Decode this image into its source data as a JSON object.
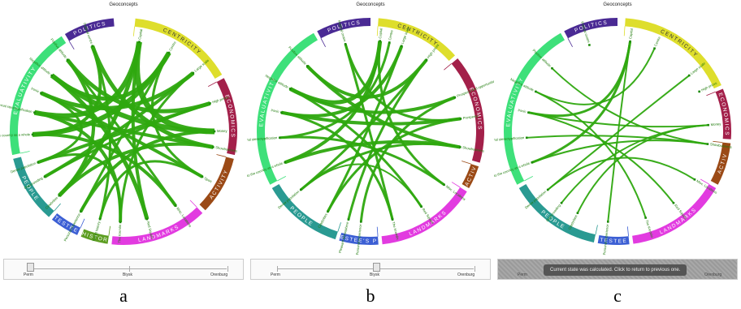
{
  "panels": [
    {
      "title": "Geoconcepts",
      "caption": "a",
      "slider": {
        "labels": [
          "Perm",
          "Biysk",
          "Orenburg"
        ],
        "value_index": 0,
        "overlay": false,
        "message": ""
      },
      "groups": [
        {
          "name": "CENTRICITY",
          "color": "#dede2c",
          "start": -84,
          "end": -30
        },
        {
          "name": "ECONOMICS",
          "color": "#a3204a",
          "start": -28,
          "end": 12
        },
        {
          "name": "ACTIVITY",
          "color": "#9b4a16",
          "start": 14,
          "end": 44
        },
        {
          "name": "LANDMARKS",
          "color": "#e23be0",
          "start": 46,
          "end": 96
        },
        {
          "name": "HISTOR",
          "color": "#5d9e22",
          "start": 98,
          "end": 112
        },
        {
          "name": "TESTEE",
          "color": "#3c5fd4",
          "start": 114,
          "end": 129
        },
        {
          "name": "PEOPLE",
          "color": "#2a9a92",
          "start": 131,
          "end": 166
        },
        {
          "name": "EVALUATIVITY",
          "color": "#3ee07a",
          "start": 168,
          "end": 237
        },
        {
          "name": "POLITICS",
          "color": "#4a2a94",
          "start": 239,
          "end": 265
        }
      ],
      "nodes": [
        {
          "label": "Capital",
          "angle": -80
        },
        {
          "label": "Centre",
          "angle": -60
        },
        {
          "label": "Large scale",
          "angle": -40
        },
        {
          "label": "High prices",
          "angle": -18
        },
        {
          "label": "Money",
          "angle": 0
        },
        {
          "label": "Showbusiness",
          "angle": 10
        },
        {
          "label": "Sport",
          "angle": 30
        },
        {
          "label": "Misc. Locations",
          "angle": 55
        },
        {
          "label": "Red Square",
          "angle": 75
        },
        {
          "label": "The Kremlin",
          "angle": 92
        },
        {
          "label": "Tsarist history",
          "angle": 105
        },
        {
          "label": "Personal experience",
          "angle": 118
        },
        {
          "label": "Celebrities",
          "angle": 135
        },
        {
          "label": "Overcrowding",
          "angle": 150
        },
        {
          "label": "Dense population",
          "angle": 160
        },
        {
          "label": "Counterposition to the country as a whole",
          "angle": 178
        },
        {
          "label": "External stereotypification",
          "angle": 192
        },
        {
          "label": "Ironic",
          "angle": 205
        },
        {
          "label": "Negative attitude",
          "angle": 218
        },
        {
          "label": "Positive attitude",
          "angle": 232
        },
        {
          "label": "Political centre",
          "angle": 250
        }
      ],
      "links": [
        {
          "a": 0,
          "b": 4,
          "w": 7
        },
        {
          "a": 0,
          "b": 16,
          "w": 6
        },
        {
          "a": 0,
          "b": 12,
          "w": 5
        },
        {
          "a": 1,
          "b": 18,
          "w": 5
        },
        {
          "a": 1,
          "b": 15,
          "w": 6
        },
        {
          "a": 2,
          "b": 17,
          "w": 5
        },
        {
          "a": 2,
          "b": 13,
          "w": 4
        },
        {
          "a": 3,
          "b": 19,
          "w": 5
        },
        {
          "a": 3,
          "b": 14,
          "w": 4
        },
        {
          "a": 4,
          "b": 18,
          "w": 6
        },
        {
          "a": 4,
          "b": 11,
          "w": 4
        },
        {
          "a": 5,
          "b": 16,
          "w": 4
        },
        {
          "a": 5,
          "b": 20,
          "w": 5
        },
        {
          "a": 6,
          "b": 17,
          "w": 4
        },
        {
          "a": 6,
          "b": 1,
          "w": 3
        },
        {
          "a": 7,
          "b": 15,
          "w": 4
        },
        {
          "a": 7,
          "b": 19,
          "w": 3
        },
        {
          "a": 8,
          "b": 18,
          "w": 5
        },
        {
          "a": 8,
          "b": 0,
          "w": 4
        },
        {
          "a": 9,
          "b": 16,
          "w": 4
        },
        {
          "a": 9,
          "b": 2,
          "w": 3
        },
        {
          "a": 10,
          "b": 20,
          "w": 3
        },
        {
          "a": 11,
          "b": 1,
          "w": 3
        },
        {
          "a": 12,
          "b": 5,
          "w": 4
        },
        {
          "a": 13,
          "b": 3,
          "w": 3
        },
        {
          "a": 14,
          "b": 17,
          "w": 3
        },
        {
          "a": 15,
          "b": 20,
          "w": 4
        },
        {
          "a": 19,
          "b": 12,
          "w": 4
        },
        {
          "a": 10,
          "b": 6,
          "w": 3
        },
        {
          "a": 9,
          "b": 14,
          "w": 3
        }
      ]
    },
    {
      "title": "Geoconcepts",
      "caption": "b",
      "slider": {
        "labels": [
          "Perm",
          "Biysk",
          "Orenburg"
        ],
        "value_index": 1,
        "overlay": false,
        "message": ""
      },
      "groups": [
        {
          "name": "CENTRICITY",
          "color": "#dede2c",
          "start": -86,
          "end": -42
        },
        {
          "name": "ECONOMICS",
          "color": "#a3204a",
          "start": -40,
          "end": 16
        },
        {
          "name": "ACTIV",
          "color": "#9b4a16",
          "start": 18,
          "end": 30
        },
        {
          "name": "LANDMARKS",
          "color": "#e23be0",
          "start": 32,
          "end": 84
        },
        {
          "name": "TESTEE'S PE",
          "color": "#3c5fd4",
          "start": 86,
          "end": 106
        },
        {
          "name": "PEOPLE",
          "color": "#2a9a92",
          "start": 108,
          "end": 150
        },
        {
          "name": "EVALUATIVITY",
          "color": "#3ee07a",
          "start": 152,
          "end": 240
        },
        {
          "name": "POLITICS",
          "color": "#4a2a94",
          "start": 242,
          "end": 270
        }
      ],
      "nodes": [
        {
          "label": "Capital",
          "angle": -84
        },
        {
          "label": "Large scale",
          "angle": -70
        },
        {
          "label": "High prices",
          "angle": -52
        },
        {
          "label": "Prospects and opportunities",
          "angle": -22
        },
        {
          "label": "Prosperity",
          "angle": -8
        },
        {
          "label": "Showbusiness",
          "angle": 10
        },
        {
          "label": "Misc. Locations",
          "angle": 36
        },
        {
          "label": "Red Square",
          "angle": 56
        },
        {
          "label": "The Kremlin",
          "angle": 76
        },
        {
          "label": "Personal experience",
          "angle": 96
        },
        {
          "label": "Pleasant atmosphere",
          "angle": 104
        },
        {
          "label": "Celebrities",
          "angle": 118
        },
        {
          "label": "Dense population",
          "angle": 140
        },
        {
          "label": "Counterposition to the country as a whole",
          "angle": 160
        },
        {
          "label": "External stereotypification",
          "angle": 176
        },
        {
          "label": "Ironic",
          "angle": 192
        },
        {
          "label": "Negative attitude",
          "angle": 208
        },
        {
          "label": "Positive attitude",
          "angle": 226
        },
        {
          "label": "Political centre",
          "angle": 254
        },
        {
          "label": "Centre",
          "angle": -78
        }
      ],
      "links": [
        {
          "a": 0,
          "b": 16,
          "w": 5
        },
        {
          "a": 0,
          "b": 13,
          "w": 4
        },
        {
          "a": 1,
          "b": 15,
          "w": 4
        },
        {
          "a": 1,
          "b": 11,
          "w": 3
        },
        {
          "a": 2,
          "b": 17,
          "w": 4
        },
        {
          "a": 2,
          "b": 12,
          "w": 3
        },
        {
          "a": 3,
          "b": 16,
          "w": 4
        },
        {
          "a": 3,
          "b": 9,
          "w": 3
        },
        {
          "a": 4,
          "b": 15,
          "w": 4
        },
        {
          "a": 4,
          "b": 18,
          "w": 3
        },
        {
          "a": 5,
          "b": 13,
          "w": 4
        },
        {
          "a": 5,
          "b": 17,
          "w": 4
        },
        {
          "a": 6,
          "b": 14,
          "w": 3
        },
        {
          "a": 6,
          "b": 0,
          "w": 3
        },
        {
          "a": 7,
          "b": 16,
          "w": 3
        },
        {
          "a": 8,
          "b": 18,
          "w": 3
        },
        {
          "a": 8,
          "b": 15,
          "w": 3
        },
        {
          "a": 10,
          "b": 2,
          "w": 3
        },
        {
          "a": 11,
          "b": 4,
          "w": 3
        },
        {
          "a": 12,
          "b": 5,
          "w": 3
        },
        {
          "a": 19,
          "b": 14,
          "w": 3
        },
        {
          "a": 7,
          "b": 12,
          "w": 2
        }
      ]
    },
    {
      "title": "Geoconcepts",
      "caption": "c",
      "slider": {
        "labels": [
          "Perm",
          "Biysk",
          "Orenburg"
        ],
        "value_index": 2,
        "overlay": true,
        "message": "Current state was calculated. Click to return to previous one."
      },
      "groups": [
        {
          "name": "CENTRICITY",
          "color": "#dede2c",
          "start": -86,
          "end": -24
        },
        {
          "name": "ECONOMICS",
          "color": "#a3204a",
          "start": -22,
          "end": 4
        },
        {
          "name": "ACTIV",
          "color": "#9b4a16",
          "start": 6,
          "end": 28
        },
        {
          "name": "LANDMARKS",
          "color": "#e23be0",
          "start": 30,
          "end": 82
        },
        {
          "name": "TESTEE",
          "color": "#3c5fd4",
          "start": 84,
          "end": 100
        },
        {
          "name": "PEOPLE",
          "color": "#2a9a92",
          "start": 102,
          "end": 150
        },
        {
          "name": "EVALUATIVITY",
          "color": "#3ee07a",
          "start": 152,
          "end": 240
        },
        {
          "name": "POLITICS",
          "color": "#4a2a94",
          "start": 242,
          "end": 270
        }
      ],
      "nodes": [
        {
          "label": "Capital",
          "angle": -82
        },
        {
          "label": "Centre",
          "angle": -66
        },
        {
          "label": "Large scale",
          "angle": -38
        },
        {
          "label": "High prices",
          "angle": -26
        },
        {
          "label": "Money",
          "angle": -4
        },
        {
          "label": "Showbusiness",
          "angle": 8
        },
        {
          "label": "Misc. Locations",
          "angle": 32
        },
        {
          "label": "Red Square",
          "angle": 52
        },
        {
          "label": "The Kremlin",
          "angle": 72
        },
        {
          "label": "Personal experience",
          "angle": 96
        },
        {
          "label": "Celebrities",
          "angle": 116
        },
        {
          "label": "Overcrowding",
          "angle": 128
        },
        {
          "label": "Dense population",
          "angle": 140
        },
        {
          "label": "Counterposition to the country as a whole",
          "angle": 160
        },
        {
          "label": "External stereotypification",
          "angle": 176
        },
        {
          "label": "Ironic",
          "angle": 192
        },
        {
          "label": "Negative attitude",
          "angle": 206
        },
        {
          "label": "Positive attitude",
          "angle": 224
        },
        {
          "label": "Political centre",
          "angle": 252
        }
      ],
      "links": [
        {
          "a": 0,
          "b": 15,
          "w": 3
        },
        {
          "a": 0,
          "b": 13,
          "w": 3
        },
        {
          "a": 1,
          "b": 16,
          "w": 2
        },
        {
          "a": 4,
          "b": 15,
          "w": 2
        },
        {
          "a": 4,
          "b": 11,
          "w": 2
        },
        {
          "a": 5,
          "b": 13,
          "w": 2
        },
        {
          "a": 5,
          "b": 17,
          "w": 2
        },
        {
          "a": 6,
          "b": 12,
          "w": 2
        },
        {
          "a": 7,
          "b": 15,
          "w": 2
        },
        {
          "a": 8,
          "b": 16,
          "w": 2
        },
        {
          "a": 9,
          "b": 0,
          "w": 2
        },
        {
          "a": 10,
          "b": 4,
          "w": 2
        },
        {
          "a": 12,
          "b": 2,
          "w": 2
        },
        {
          "a": 14,
          "b": 5,
          "w": 2
        }
      ]
    }
  ]
}
